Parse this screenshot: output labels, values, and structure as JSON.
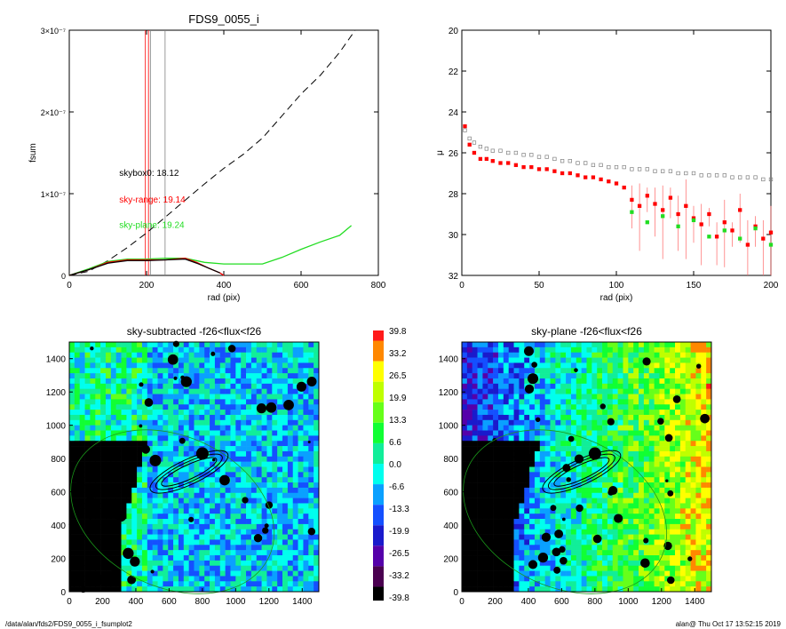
{
  "footer": {
    "path": "/data/alan/fds2/FDS9_0055_i_fsumplot2",
    "stamp": "alan@  Thu Oct 17 13:52:15 2019"
  },
  "colors": {
    "black": "#000000",
    "red": "#ff0000",
    "green": "#22dd22",
    "grey": "#808080",
    "orange": "#ff8c1a"
  },
  "chart_data": [
    {
      "id": "fsum_plot",
      "type": "line",
      "title": "FDS9_0055_i",
      "xlabel": "rad (pix)",
      "ylabel": "fsum",
      "xlim": [
        0,
        800
      ],
      "ylim": [
        0,
        3e-07
      ],
      "xticks": [
        0,
        200,
        400,
        600,
        800
      ],
      "yticks": [
        {
          "value": 0,
          "label": "0"
        },
        {
          "value": 1e-07,
          "label": "1×10⁻⁷"
        },
        {
          "value": 2e-07,
          "label": "2×10⁻⁷"
        },
        {
          "value": 3e-07,
          "label": "3×10⁻⁷"
        }
      ],
      "vlines": [
        {
          "x": 197,
          "color": "#ff0000"
        },
        {
          "x": 205,
          "color": "#ff0000"
        },
        {
          "x": 210,
          "color": "#808080"
        },
        {
          "x": 248,
          "color": "#808080"
        }
      ],
      "annotations": [
        {
          "text": "skybox0: 18.12",
          "color": "#000000",
          "x": 120,
          "y": 1.22e-07
        },
        {
          "text": "sky-range: 19.14",
          "color": "#ff0000",
          "x": 120,
          "y": 8.9e-08
        },
        {
          "text": "sky-plane: 19.24",
          "color": "#22dd22",
          "x": 120,
          "y": 5.8e-08
        }
      ],
      "series": [
        {
          "style": "dashed",
          "color": "#000000",
          "x": [
            0,
            50,
            100,
            150,
            200,
            250,
            300,
            350,
            400,
            450,
            500,
            550,
            600,
            650,
            700,
            740
          ],
          "y": [
            0,
            5e-09,
            1.8e-08,
            3.4e-08,
            5.2e-08,
            7.2e-08,
            9.2e-08,
            1.12e-07,
            1.31e-07,
            1.48e-07,
            1.68e-07,
            1.95e-07,
            2.22e-07,
            2.45e-07,
            2.73e-07,
            3e-07
          ]
        },
        {
          "style": "solid",
          "color": "#22dd22",
          "x": [
            0,
            50,
            100,
            150,
            200,
            250,
            300,
            350,
            400,
            450,
            500,
            550,
            600,
            650,
            700,
            730
          ],
          "y": [
            0,
            8e-09,
            1.7e-08,
            2e-08,
            2e-08,
            2.1e-08,
            2.1e-08,
            1.6e-08,
            1.4e-08,
            1.4e-08,
            1.4e-08,
            2.2e-08,
            3.2e-08,
            4.1e-08,
            4.9e-08,
            6.1e-08
          ]
        },
        {
          "style": "solid",
          "color": "#ff0000",
          "x": [
            0,
            50,
            100,
            150,
            200,
            250,
            300,
            330,
            360,
            390,
            400
          ],
          "y": [
            0,
            7e-09,
            1.6e-08,
            1.9e-08,
            1.9e-08,
            1.9e-08,
            2.1e-08,
            1.6e-08,
            9e-09,
            3e-09,
            0.0
          ]
        },
        {
          "style": "solid",
          "color": "#000000",
          "x": [
            0,
            50,
            100,
            150,
            200,
            250,
            300,
            330,
            360,
            390
          ],
          "y": [
            0,
            7e-09,
            1.5e-08,
            1.8e-08,
            1.8e-08,
            1.9e-08,
            2e-08,
            1.5e-08,
            9e-09,
            3e-09
          ]
        }
      ]
    },
    {
      "id": "mu_plot",
      "type": "scatter",
      "title": "",
      "xlabel": "rad (pix)",
      "ylabel": "μ",
      "xlim": [
        0,
        200
      ],
      "ylim": [
        32,
        20
      ],
      "xticks": [
        0,
        50,
        100,
        150,
        200
      ],
      "yticks": [
        20,
        22,
        24,
        26,
        28,
        30,
        32
      ],
      "series": [
        {
          "color": "#808080",
          "marker": "open-square",
          "x": [
            2,
            5,
            8,
            12,
            16,
            20,
            25,
            30,
            35,
            40,
            45,
            50,
            55,
            60,
            65,
            70,
            75,
            80,
            85,
            90,
            95,
            100,
            105,
            110,
            115,
            120,
            125,
            130,
            135,
            140,
            145,
            150,
            155,
            160,
            165,
            170,
            175,
            180,
            185,
            190,
            195,
            200
          ],
          "y": [
            24.9,
            25.3,
            25.5,
            25.7,
            25.8,
            25.9,
            25.9,
            26.0,
            26.0,
            26.1,
            26.1,
            26.2,
            26.2,
            26.3,
            26.4,
            26.4,
            26.5,
            26.5,
            26.6,
            26.6,
            26.7,
            26.7,
            26.7,
            26.8,
            26.8,
            26.8,
            26.9,
            26.9,
            26.9,
            27.0,
            27.0,
            27.0,
            27.1,
            27.1,
            27.1,
            27.1,
            27.2,
            27.2,
            27.2,
            27.2,
            27.3,
            27.3
          ]
        },
        {
          "color": "#ff0000",
          "marker": "filled-square",
          "x": [
            2,
            5,
            8,
            12,
            16,
            20,
            25,
            30,
            35,
            40,
            45,
            50,
            55,
            60,
            65,
            70,
            75,
            80,
            85,
            90,
            95,
            100,
            105,
            110,
            115,
            120,
            125,
            130,
            135,
            140,
            145,
            150,
            155,
            160,
            165,
            170,
            175,
            180,
            185,
            190,
            195,
            200
          ],
          "y": [
            24.7,
            25.6,
            26.0,
            26.3,
            26.3,
            26.4,
            26.5,
            26.5,
            26.6,
            26.7,
            26.7,
            26.8,
            26.8,
            26.9,
            27.0,
            27.0,
            27.1,
            27.2,
            27.2,
            27.3,
            27.4,
            27.5,
            27.7,
            28.3,
            28.6,
            28.1,
            28.5,
            28.8,
            28.2,
            29.0,
            28.6,
            29.2,
            29.5,
            29.0,
            30.1,
            29.4,
            29.8,
            28.8,
            30.5,
            29.6,
            30.2,
            29.9
          ]
        },
        {
          "color": "#22dd22",
          "marker": "filled-square",
          "x": [
            110,
            120,
            130,
            140,
            150,
            160,
            170,
            180,
            190,
            200
          ],
          "y": [
            28.9,
            29.4,
            29.1,
            29.6,
            29.3,
            30.1,
            29.8,
            30.2,
            29.7,
            30.5
          ]
        }
      ]
    },
    {
      "id": "image_sub",
      "type": "heatmap",
      "title": "sky-subtracted -f26<flux<f26",
      "xlim": [
        0,
        1500
      ],
      "ylim": [
        0,
        1500
      ],
      "xticks": [
        0,
        200,
        400,
        600,
        800,
        1000,
        1200,
        1400
      ],
      "yticks": [
        0,
        200,
        400,
        600,
        800,
        1000,
        1200,
        1400
      ],
      "gradient": "uniform"
    },
    {
      "id": "colorbar",
      "type": "heatmap",
      "title": "",
      "labels": [
        "39.8",
        "33.2",
        "26.5",
        "19.9",
        "13.3",
        "6.6",
        "0.0",
        "-6.6",
        "-13.3",
        "-19.9",
        "-26.5",
        "-33.2",
        "-39.8"
      ],
      "colors": [
        "#ff1a1a",
        "#ff8800",
        "#ffff00",
        "#bfff00",
        "#66ff1a",
        "#11ff33",
        "#11ee99",
        "#00ffee",
        "#0aa0ff",
        "#1450ff",
        "#1a1acc",
        "#5500aa",
        "#4a0050",
        "#000000"
      ]
    },
    {
      "id": "image_plane",
      "type": "heatmap",
      "title": "sky-plane -f26<flux<f26",
      "xlim": [
        0,
        1500
      ],
      "ylim": [
        0,
        1500
      ],
      "xticks": [
        0,
        200,
        400,
        600,
        800,
        1000,
        1200,
        1400
      ],
      "yticks": [
        0,
        200,
        400,
        600,
        800,
        1000,
        1200,
        1400
      ],
      "gradient": "left-to-right"
    }
  ]
}
